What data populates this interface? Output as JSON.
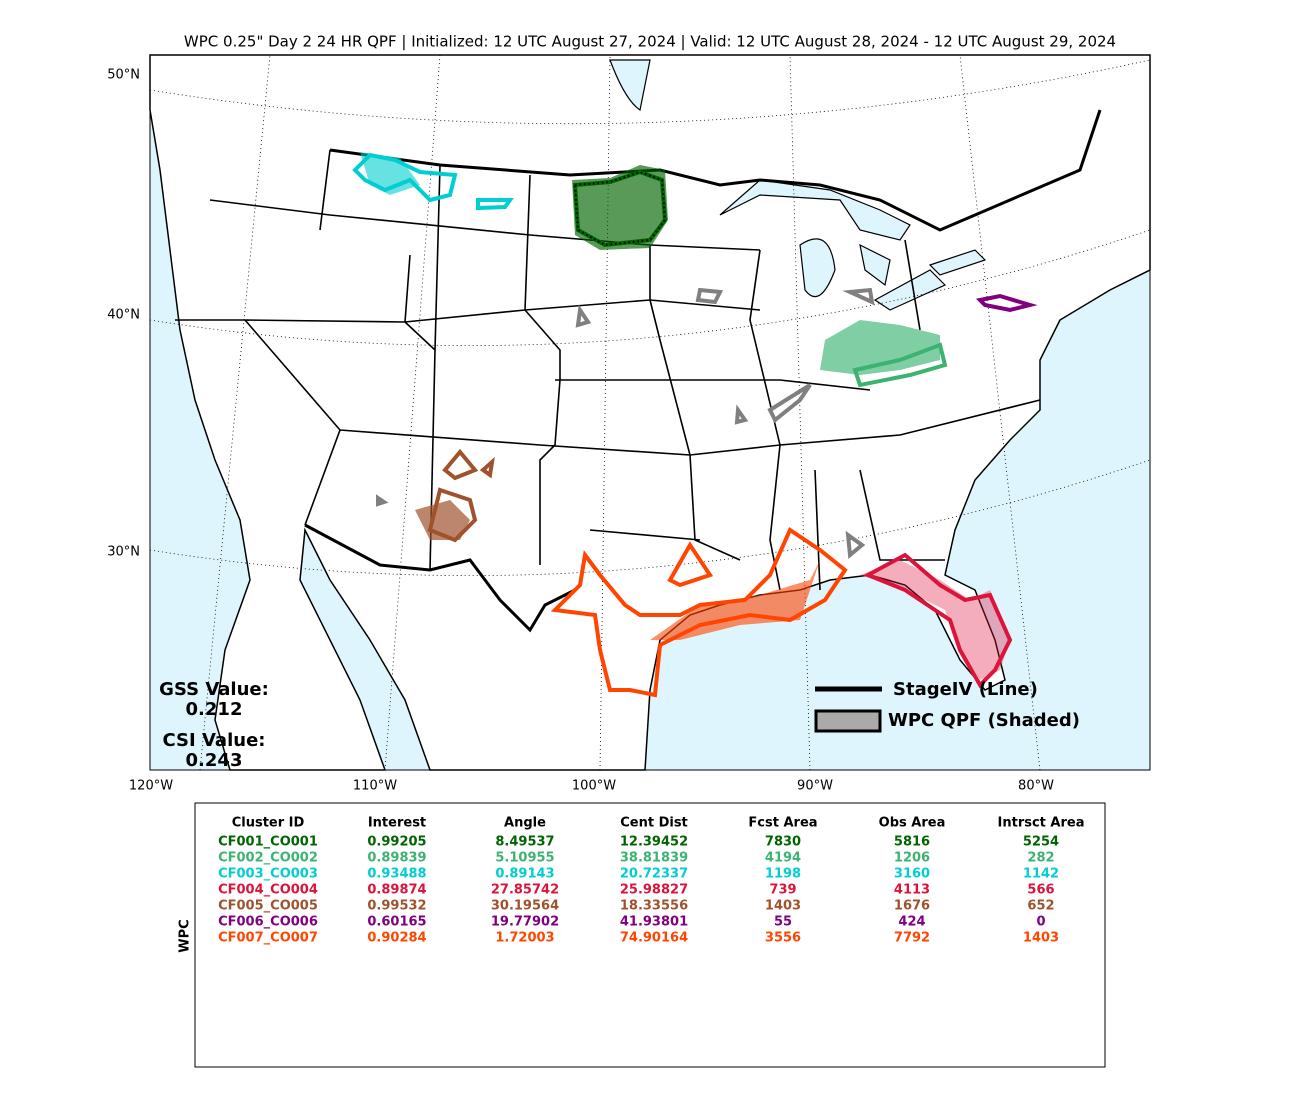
{
  "title": "WPC 0.25\" Day 2 24 HR QPF | Initialized: 12 UTC August 27, 2024 | Valid: 12 UTC August 28, 2024 - 12 UTC August 29, 2024",
  "map": {
    "lat_labels": [
      "50°N",
      "40°N",
      "30°N"
    ],
    "lon_labels": [
      "120°W",
      "110°W",
      "100°W",
      "90°W",
      "80°W"
    ],
    "scores": [
      {
        "label": "GSS Value:",
        "value": "0.212"
      },
      {
        "label": "CSI Value:",
        "value": "0.243"
      }
    ],
    "legend": [
      "StageIV (Line)",
      "WPC QPF (Shaded)"
    ]
  },
  "table": {
    "side_label": "WPC",
    "columns": [
      "Cluster ID",
      "Interest",
      "Angle",
      "Cent Dist",
      "Fcst Area",
      "Obs Area",
      "Intrsct Area"
    ],
    "rows": [
      {
        "color": "#006400",
        "cells": [
          "CF001_CO001",
          0.99205,
          8.49537,
          12.39452,
          7830,
          5816,
          5254
        ]
      },
      {
        "color": "#3cb371",
        "cells": [
          "CF002_CO002",
          0.89839,
          5.10955,
          38.81839,
          4194,
          1206,
          282
        ]
      },
      {
        "color": "#00ced1",
        "cells": [
          "CF003_CO003",
          0.93488,
          0.89143,
          20.72337,
          1198,
          3160,
          1142
        ]
      },
      {
        "color": "#dc143c",
        "cells": [
          "CF004_CO004",
          0.89874,
          27.85742,
          25.98827,
          739,
          4113,
          566
        ]
      },
      {
        "color": "#a0522d",
        "cells": [
          "CF005_CO005",
          0.99532,
          30.19564,
          18.33556,
          1403,
          1676,
          652
        ]
      },
      {
        "color": "#800080",
        "cells": [
          "CF006_CO006",
          0.60165,
          19.77902,
          41.93801,
          55,
          424,
          0
        ]
      },
      {
        "color": "#ff4500",
        "cells": [
          "CF007_CO007",
          0.90284,
          1.72003,
          74.90164,
          3556,
          7792,
          1403
        ]
      }
    ]
  }
}
